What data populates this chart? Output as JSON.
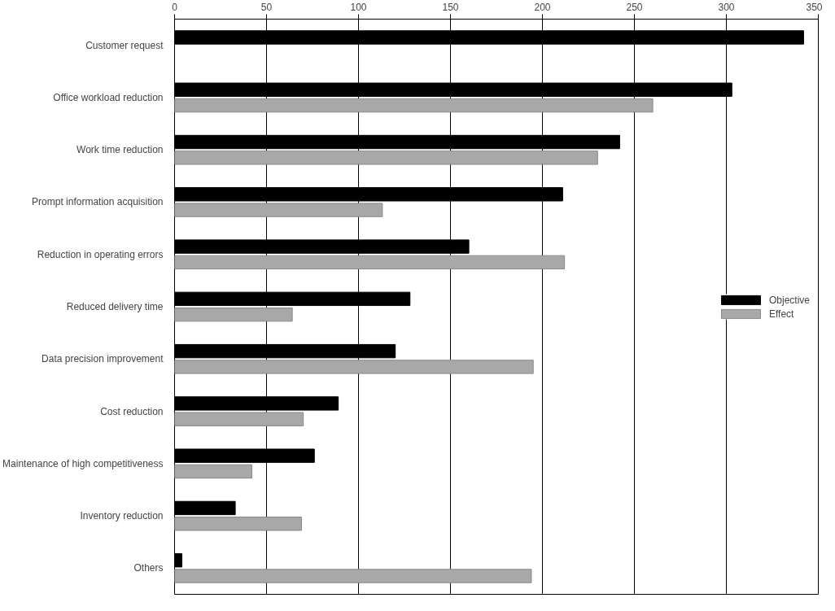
{
  "chart_data": {
    "type": "bar",
    "orientation": "horizontal",
    "categories": [
      "Customer request",
      "Office workload reduction",
      "Work time reduction",
      "Prompt information acquisition",
      "Reduction in operating errors",
      "Reduced delivery time",
      "Data precision improvement",
      "Cost reduction",
      "Maintenance of high competitiveness",
      "Inventory reduction",
      "Others"
    ],
    "series": [
      {
        "name": "Objective",
        "color": "#000000",
        "values": [
          342,
          303,
          242,
          211,
          160,
          128,
          120,
          89,
          76,
          33,
          4
        ]
      },
      {
        "name": "Effect",
        "color": "#a8a8a8",
        "values": [
          null,
          260,
          230,
          113,
          212,
          64,
          195,
          70,
          42,
          69,
          194
        ]
      }
    ],
    "xlim": [
      0,
      350
    ],
    "xticks": [
      0,
      50,
      100,
      150,
      200,
      250,
      300,
      350
    ],
    "grid": "x",
    "legend": "right"
  }
}
